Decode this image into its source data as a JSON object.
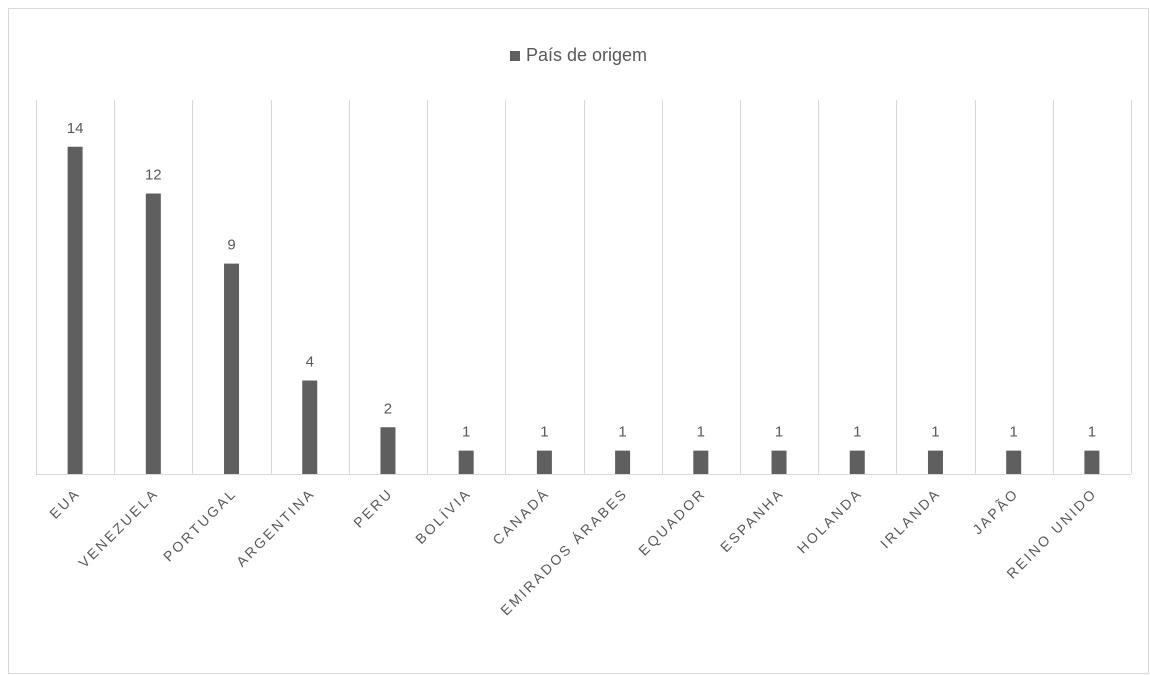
{
  "chart_data": {
    "type": "bar",
    "categories": [
      "EUA",
      "VENEZUELA",
      "PORTUGAL",
      "ARGENTINA",
      "PERU",
      "BOLÍVIA",
      "CANADÁ",
      "EMIRADOS ÁRABES",
      "EQUADOR",
      "ESPANHA",
      "HOLANDA",
      "IRLANDA",
      "JAPÃO",
      "REINO UNIDO"
    ],
    "series": [
      {
        "name": "País de origem",
        "values": [
          14,
          12,
          9,
          4,
          2,
          1,
          1,
          1,
          1,
          1,
          1,
          1,
          1,
          1
        ]
      }
    ],
    "ylim": [
      0,
      16
    ],
    "data_labels": true,
    "gridlines": "vertical",
    "legend_position": "top",
    "bar_color": "#5f5f5f"
  }
}
